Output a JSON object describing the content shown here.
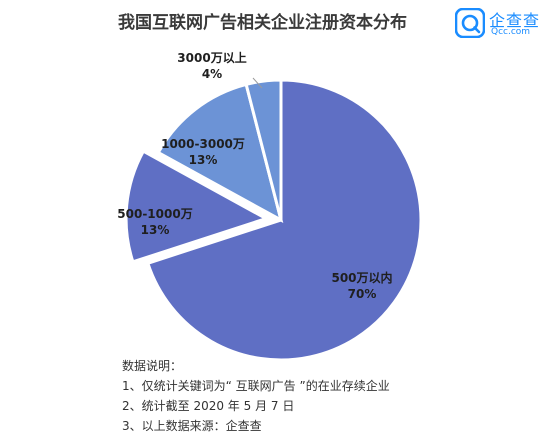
{
  "title": "我国互联网广告相关企业注册资本分布",
  "logo": {
    "text": "企查查",
    "sub": "Qcc.com",
    "color": "#1a8cff"
  },
  "chart_data": {
    "type": "pie",
    "title": "我国互联网广告相关企业注册资本分布",
    "slices": [
      {
        "label": "500万以内",
        "value": 70,
        "pct": "70%",
        "color": "#5f6fc4"
      },
      {
        "label": "500-1000万",
        "value": 13,
        "pct": "13%",
        "color": "#5f6fc4",
        "exploded": true
      },
      {
        "label": "1000-3000万",
        "value": 13,
        "pct": "13%",
        "color": "#6c93d6"
      },
      {
        "label": "3000万以上",
        "value": 4,
        "pct": "4%",
        "color": "#6c93d6"
      }
    ]
  },
  "notes": {
    "heading": "数据说明：",
    "items": [
      "1、仅统计关键词为“ 互联网广告 ”的在业存续企业",
      "2、统计截至 2020 年 5 月 7 日",
      "3、以上数据来源：企查查"
    ]
  }
}
